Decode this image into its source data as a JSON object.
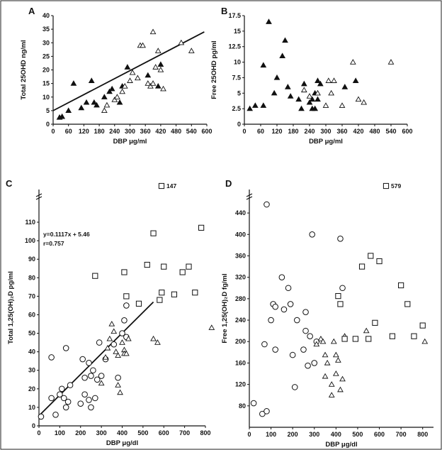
{
  "chart_data": [
    {
      "panel": "A",
      "type": "scatter",
      "xlabel": "DBP μg/ml",
      "ylabel": "Total 25OHD ng/ml",
      "xlim": [
        0,
        600
      ],
      "ylim": [
        0,
        40
      ],
      "xticks": [
        0,
        60,
        120,
        180,
        240,
        300,
        360,
        420,
        480,
        540,
        600
      ],
      "yticks": [
        0,
        5,
        10,
        15,
        20,
        25,
        30,
        35,
        40
      ],
      "series": [
        {
          "marker": "filled-triangle",
          "points": [
            [
              25,
              2.5
            ],
            [
              35,
              2.8
            ],
            [
              60,
              5
            ],
            [
              80,
              15
            ],
            [
              110,
              6
            ],
            [
              130,
              8
            ],
            [
              150,
              16
            ],
            [
              160,
              8
            ],
            [
              170,
              7
            ],
            [
              200,
              10
            ],
            [
              220,
              12
            ],
            [
              230,
              13
            ],
            [
              260,
              8
            ],
            [
              270,
              14
            ],
            [
              290,
              21
            ],
            [
              370,
              18
            ],
            [
              410,
              14
            ],
            [
              420,
              22
            ]
          ]
        },
        {
          "marker": "open-triangle",
          "points": [
            [
              200,
              5
            ],
            [
              210,
              7
            ],
            [
              240,
              9
            ],
            [
              250,
              10
            ],
            [
              270,
              12
            ],
            [
              280,
              14
            ],
            [
              300,
              16
            ],
            [
              310,
              19
            ],
            [
              330,
              17
            ],
            [
              340,
              29
            ],
            [
              350,
              29
            ],
            [
              370,
              15
            ],
            [
              380,
              14
            ],
            [
              390,
              15
            ],
            [
              390,
              34
            ],
            [
              400,
              21
            ],
            [
              410,
              27
            ],
            [
              420,
              20
            ],
            [
              430,
              13
            ],
            [
              500,
              30
            ],
            [
              540,
              27
            ]
          ]
        }
      ],
      "fit_line": [
        [
          0,
          5
        ],
        [
          590,
          34
        ]
      ]
    },
    {
      "panel": "B",
      "type": "scatter",
      "xlabel": "DBP μg/ml",
      "ylabel": "Free 25OHD pg/ml",
      "xlim": [
        0,
        600
      ],
      "ylim": [
        0,
        17.5
      ],
      "xticks": [
        0,
        60,
        120,
        180,
        240,
        300,
        360,
        420,
        480,
        540,
        600
      ],
      "yticks": [
        0,
        2.5,
        5,
        7.5,
        10,
        12.5,
        15,
        17.5
      ],
      "series": [
        {
          "marker": "filled-triangle",
          "points": [
            [
              20,
              2.5
            ],
            [
              40,
              3
            ],
            [
              70,
              3
            ],
            [
              70,
              9.5
            ],
            [
              90,
              16.5
            ],
            [
              110,
              5
            ],
            [
              120,
              7.5
            ],
            [
              140,
              11
            ],
            [
              150,
              13.5
            ],
            [
              160,
              6
            ],
            [
              170,
              4.5
            ],
            [
              200,
              4
            ],
            [
              210,
              2.5
            ],
            [
              220,
              6.5
            ],
            [
              240,
              3.5
            ],
            [
              250,
              4
            ],
            [
              250,
              2.5
            ],
            [
              260,
              2.5
            ],
            [
              260,
              5
            ],
            [
              270,
              7
            ],
            [
              270,
              4
            ],
            [
              280,
              6.5
            ],
            [
              370,
              6
            ],
            [
              410,
              7
            ]
          ]
        },
        {
          "marker": "open-triangle",
          "points": [
            [
              220,
              5.5
            ],
            [
              240,
              4.5
            ],
            [
              270,
              5
            ],
            [
              300,
              3
            ],
            [
              310,
              7
            ],
            [
              320,
              5
            ],
            [
              330,
              7
            ],
            [
              360,
              3
            ],
            [
              400,
              10
            ],
            [
              420,
              4
            ],
            [
              440,
              3.5
            ],
            [
              540,
              10
            ]
          ]
        }
      ]
    },
    {
      "panel": "C",
      "type": "scatter",
      "xlabel": "DBP μg/dl",
      "ylabel": "Total 1,25(OH)₂D pg/ml",
      "xlim": [
        0,
        800
      ],
      "ylim": [
        0,
        115
      ],
      "xticks": [
        0,
        100,
        200,
        300,
        400,
        500,
        600,
        700,
        800
      ],
      "yticks": [
        0,
        10,
        20,
        30,
        40,
        50,
        60,
        70,
        80,
        90,
        100,
        110
      ],
      "equation": "y=0.1117x + 5.46",
      "r_value": "r=0.757",
      "outlier_label": "147",
      "series": [
        {
          "marker": "open-circle",
          "points": [
            [
              10,
              5
            ],
            [
              60,
              37
            ],
            [
              60,
              15
            ],
            [
              80,
              6
            ],
            [
              100,
              17
            ],
            [
              110,
              20
            ],
            [
              120,
              15
            ],
            [
              130,
              42
            ],
            [
              130,
              10
            ],
            [
              140,
              13
            ],
            [
              150,
              22
            ],
            [
              200,
              12
            ],
            [
              210,
              36
            ],
            [
              220,
              26
            ],
            [
              220,
              17
            ],
            [
              240,
              14
            ],
            [
              240,
              34
            ],
            [
              250,
              27
            ],
            [
              250,
              10
            ],
            [
              260,
              30
            ],
            [
              270,
              15
            ],
            [
              280,
              25
            ],
            [
              290,
              45
            ],
            [
              300,
              27
            ],
            [
              320,
              36
            ],
            [
              360,
              44
            ],
            [
              380,
              26
            ],
            [
              400,
              50
            ],
            [
              410,
              57
            ],
            [
              420,
              48
            ],
            [
              420,
              65
            ]
          ]
        },
        {
          "marker": "open-triangle",
          "points": [
            [
              300,
              23
            ],
            [
              320,
              37
            ],
            [
              330,
              42
            ],
            [
              340,
              47
            ],
            [
              350,
              55
            ],
            [
              360,
              51
            ],
            [
              370,
              40
            ],
            [
              380,
              38
            ],
            [
              380,
              22
            ],
            [
              390,
              18
            ],
            [
              400,
              45
            ],
            [
              410,
              41
            ],
            [
              410,
              39
            ],
            [
              420,
              39
            ],
            [
              430,
              47
            ],
            [
              550,
              47
            ],
            [
              570,
              45
            ],
            [
              830,
              53
            ]
          ]
        },
        {
          "marker": "open-square",
          "points": [
            [
              270,
              81
            ],
            [
              410,
              83
            ],
            [
              420,
              70
            ],
            [
              480,
              66
            ],
            [
              520,
              87
            ],
            [
              550,
              104
            ],
            [
              580,
              68
            ],
            [
              590,
              72
            ],
            [
              600,
              86
            ],
            [
              650,
              71
            ],
            [
              690,
              83
            ],
            [
              720,
              86
            ],
            [
              750,
              72
            ],
            [
              780,
              107
            ]
          ]
        }
      ],
      "fit_line": [
        [
          0,
          5.46
        ],
        [
          550,
          66.9
        ]
      ]
    },
    {
      "panel": "D",
      "type": "scatter",
      "xlabel": "DBP μg/dl",
      "ylabel": "Free 1,25(OH)₂D fg/ml",
      "xlim": [
        0,
        850
      ],
      "ylim": [
        40,
        460
      ],
      "xticks": [
        0,
        100,
        200,
        300,
        400,
        500,
        600,
        700,
        800
      ],
      "yticks": [
        80,
        120,
        160,
        200,
        240,
        280,
        320,
        360,
        400,
        440
      ],
      "outlier_label": "579",
      "series": [
        {
          "marker": "open-circle",
          "points": [
            [
              20,
              85
            ],
            [
              60,
              65
            ],
            [
              70,
              195
            ],
            [
              80,
              456
            ],
            [
              80,
              70
            ],
            [
              100,
              240
            ],
            [
              110,
              270
            ],
            [
              120,
              265
            ],
            [
              120,
              185
            ],
            [
              150,
              320
            ],
            [
              160,
              260
            ],
            [
              180,
              300
            ],
            [
              190,
              270
            ],
            [
              200,
              175
            ],
            [
              210,
              115
            ],
            [
              220,
              240
            ],
            [
              250,
              185
            ],
            [
              260,
              220
            ],
            [
              260,
              255
            ],
            [
              270,
              155
            ],
            [
              280,
              210
            ],
            [
              290,
              400
            ],
            [
              300,
              160
            ],
            [
              310,
              200
            ],
            [
              420,
              392
            ],
            [
              430,
              300
            ]
          ]
        },
        {
          "marker": "open-triangle",
          "points": [
            [
              310,
              195
            ],
            [
              330,
              205
            ],
            [
              340,
              200
            ],
            [
              350,
              135
            ],
            [
              350,
              175
            ],
            [
              360,
              160
            ],
            [
              380,
              120
            ],
            [
              380,
              100
            ],
            [
              390,
              200
            ],
            [
              400,
              175
            ],
            [
              400,
              140
            ],
            [
              410,
              165
            ],
            [
              420,
              110
            ],
            [
              430,
              130
            ],
            [
              440,
              210
            ],
            [
              540,
              220
            ],
            [
              810,
              200
            ]
          ]
        },
        {
          "marker": "open-square",
          "points": [
            [
              410,
              285
            ],
            [
              420,
              270
            ],
            [
              440,
              205
            ],
            [
              490,
              205
            ],
            [
              520,
              340
            ],
            [
              550,
              205
            ],
            [
              560,
              360
            ],
            [
              580,
              235
            ],
            [
              600,
              350
            ],
            [
              660,
              210
            ],
            [
              700,
              305
            ],
            [
              730,
              270
            ],
            [
              760,
              210
            ],
            [
              800,
              230
            ]
          ]
        }
      ]
    }
  ]
}
